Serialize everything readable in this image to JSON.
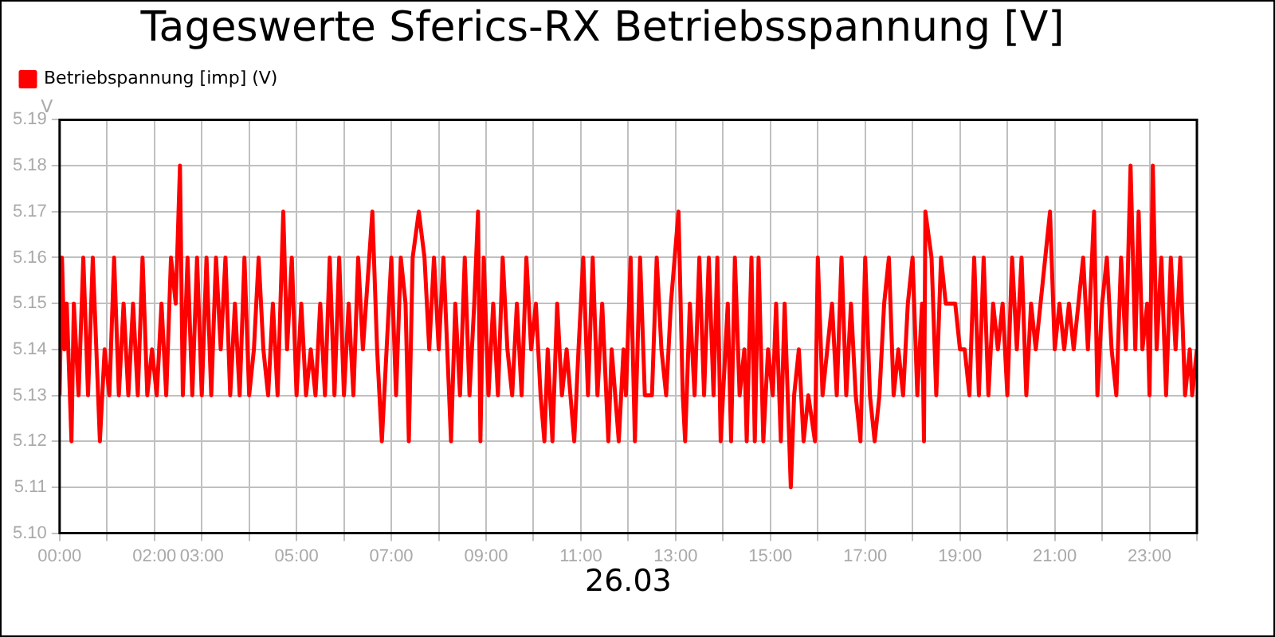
{
  "chart_data": {
    "type": "line",
    "title": "Tageswerte Sferics-RX Betriebsspannung [V]",
    "xlabel": "26.03",
    "ylabel": "V",
    "x": [
      0,
      0.05,
      0.1,
      0.15,
      0.25,
      0.3,
      0.4,
      0.5,
      0.6,
      0.7,
      0.85,
      0.95,
      1.05,
      1.15,
      1.25,
      1.35,
      1.45,
      1.55,
      1.65,
      1.75,
      1.85,
      1.95,
      2.05,
      2.15,
      2.25,
      2.35,
      2.45,
      2.54,
      2.6,
      2.7,
      2.8,
      2.9,
      3.0,
      3.1,
      3.2,
      3.3,
      3.4,
      3.5,
      3.6,
      3.7,
      3.8,
      3.9,
      4.0,
      4.1,
      4.2,
      4.3,
      4.4,
      4.5,
      4.6,
      4.72,
      4.8,
      4.9,
      5.0,
      5.1,
      5.2,
      5.3,
      5.4,
      5.5,
      5.6,
      5.7,
      5.8,
      5.9,
      6.0,
      6.1,
      6.2,
      6.3,
      6.4,
      6.6,
      6.7,
      6.8,
      6.9,
      7.0,
      7.1,
      7.2,
      7.3,
      7.37,
      7.45,
      7.58,
      7.7,
      7.8,
      7.9,
      8.0,
      8.1,
      8.26,
      8.35,
      8.45,
      8.55,
      8.65,
      8.75,
      8.83,
      8.88,
      8.95,
      9.05,
      9.15,
      9.25,
      9.35,
      9.45,
      9.55,
      9.65,
      9.75,
      9.85,
      9.95,
      10.05,
      10.15,
      10.23,
      10.3,
      10.4,
      10.5,
      10.6,
      10.7,
      10.86,
      10.95,
      11.05,
      11.15,
      11.25,
      11.35,
      11.45,
      11.58,
      11.65,
      11.8,
      11.9,
      11.95,
      12.05,
      12.14,
      12.25,
      12.35,
      12.5,
      12.6,
      12.7,
      12.8,
      12.9,
      13.06,
      13.15,
      13.2,
      13.3,
      13.4,
      13.5,
      13.6,
      13.7,
      13.8,
      13.88,
      13.95,
      14.05,
      14.1,
      14.17,
      14.25,
      14.35,
      14.45,
      14.5,
      14.6,
      14.67,
      14.75,
      14.85,
      14.95,
      15.05,
      15.12,
      15.22,
      15.3,
      15.43,
      15.5,
      15.6,
      15.7,
      15.8,
      15.94,
      16.0,
      16.1,
      16.2,
      16.3,
      16.4,
      16.5,
      16.6,
      16.7,
      16.8,
      16.9,
      17.0,
      17.1,
      17.2,
      17.3,
      17.4,
      17.5,
      17.6,
      17.7,
      17.8,
      17.9,
      18.0,
      18.1,
      18.2,
      18.24,
      18.27,
      18.4,
      18.5,
      18.6,
      18.7,
      18.9,
      19.0,
      19.1,
      19.2,
      19.3,
      19.4,
      19.5,
      19.6,
      19.7,
      19.8,
      19.9,
      20.0,
      20.1,
      20.2,
      20.3,
      20.4,
      20.5,
      20.6,
      20.7,
      20.8,
      20.9,
      21.0,
      21.1,
      21.2,
      21.3,
      21.4,
      21.5,
      21.6,
      21.7,
      21.83,
      21.9,
      22.0,
      22.1,
      22.2,
      22.3,
      22.4,
      22.5,
      22.6,
      22.7,
      22.77,
      22.85,
      22.95,
      23.0,
      23.07,
      23.15,
      23.25,
      23.35,
      23.45,
      23.55,
      23.65,
      23.75,
      23.85,
      23.9,
      24.0
    ],
    "series": [
      {
        "name": "Betriebspannung [imp] (V)",
        "color": "#ff0000",
        "values": [
          5.13,
          5.16,
          5.14,
          5.15,
          5.12,
          5.15,
          5.13,
          5.16,
          5.13,
          5.16,
          5.12,
          5.14,
          5.13,
          5.16,
          5.13,
          5.15,
          5.13,
          5.15,
          5.13,
          5.16,
          5.13,
          5.14,
          5.13,
          5.15,
          5.13,
          5.16,
          5.15,
          5.18,
          5.13,
          5.16,
          5.13,
          5.16,
          5.13,
          5.16,
          5.13,
          5.16,
          5.14,
          5.16,
          5.13,
          5.15,
          5.13,
          5.16,
          5.13,
          5.14,
          5.16,
          5.14,
          5.13,
          5.15,
          5.13,
          5.17,
          5.14,
          5.16,
          5.13,
          5.15,
          5.13,
          5.14,
          5.13,
          5.15,
          5.13,
          5.16,
          5.13,
          5.16,
          5.13,
          5.15,
          5.13,
          5.16,
          5.14,
          5.17,
          5.14,
          5.12,
          5.14,
          5.16,
          5.13,
          5.16,
          5.15,
          5.12,
          5.16,
          5.17,
          5.16,
          5.14,
          5.16,
          5.14,
          5.16,
          5.12,
          5.15,
          5.13,
          5.16,
          5.13,
          5.15,
          5.17,
          5.12,
          5.16,
          5.13,
          5.15,
          5.13,
          5.16,
          5.14,
          5.13,
          5.15,
          5.13,
          5.16,
          5.14,
          5.15,
          5.13,
          5.12,
          5.14,
          5.12,
          5.15,
          5.13,
          5.14,
          5.12,
          5.14,
          5.16,
          5.13,
          5.16,
          5.13,
          5.15,
          5.12,
          5.14,
          5.12,
          5.14,
          5.13,
          5.16,
          5.12,
          5.16,
          5.13,
          5.13,
          5.16,
          5.14,
          5.13,
          5.15,
          5.17,
          5.13,
          5.12,
          5.15,
          5.13,
          5.16,
          5.13,
          5.16,
          5.13,
          5.16,
          5.12,
          5.14,
          5.15,
          5.12,
          5.16,
          5.13,
          5.14,
          5.12,
          5.16,
          5.12,
          5.16,
          5.12,
          5.14,
          5.13,
          5.15,
          5.12,
          5.15,
          5.11,
          5.13,
          5.14,
          5.12,
          5.13,
          5.12,
          5.16,
          5.13,
          5.14,
          5.15,
          5.13,
          5.16,
          5.13,
          5.15,
          5.13,
          5.12,
          5.16,
          5.13,
          5.12,
          5.13,
          5.15,
          5.16,
          5.13,
          5.14,
          5.13,
          5.15,
          5.16,
          5.13,
          5.15,
          5.12,
          5.17,
          5.16,
          5.13,
          5.16,
          5.15,
          5.15,
          5.14,
          5.14,
          5.13,
          5.16,
          5.13,
          5.16,
          5.13,
          5.15,
          5.14,
          5.15,
          5.13,
          5.16,
          5.14,
          5.16,
          5.13,
          5.15,
          5.14,
          5.15,
          5.16,
          5.17,
          5.14,
          5.15,
          5.14,
          5.15,
          5.14,
          5.15,
          5.16,
          5.14,
          5.17,
          5.13,
          5.15,
          5.16,
          5.14,
          5.13,
          5.16,
          5.14,
          5.18,
          5.14,
          5.17,
          5.14,
          5.15,
          5.13,
          5.18,
          5.14,
          5.16,
          5.13,
          5.16,
          5.14,
          5.16,
          5.13,
          5.14,
          5.13,
          5.14
        ]
      }
    ],
    "xlim": [
      0,
      24
    ],
    "xticks": [
      {
        "value": 0,
        "label": "00:00"
      },
      {
        "value": 1,
        "label": null
      },
      {
        "value": 2,
        "label": "02:00"
      },
      {
        "value": 3,
        "label": "03:00"
      },
      {
        "value": 4,
        "label": null
      },
      {
        "value": 5,
        "label": "05:00"
      },
      {
        "value": 6,
        "label": null
      },
      {
        "value": 7,
        "label": "07:00"
      },
      {
        "value": 8,
        "label": null
      },
      {
        "value": 9,
        "label": "09:00"
      },
      {
        "value": 10,
        "label": null
      },
      {
        "value": 11,
        "label": "11:00"
      },
      {
        "value": 12,
        "label": null
      },
      {
        "value": 13,
        "label": "13:00"
      },
      {
        "value": 14,
        "label": null
      },
      {
        "value": 15,
        "label": "15:00"
      },
      {
        "value": 16,
        "label": null
      },
      {
        "value": 17,
        "label": "17:00"
      },
      {
        "value": 18,
        "label": null
      },
      {
        "value": 19,
        "label": "19:00"
      },
      {
        "value": 20,
        "label": null
      },
      {
        "value": 21,
        "label": "21:00"
      },
      {
        "value": 22,
        "label": null
      },
      {
        "value": 23,
        "label": "23:00"
      },
      {
        "value": 24,
        "label": null
      }
    ],
    "ylim": [
      5.1,
      5.19
    ],
    "yticks": [
      {
        "value": 5.1,
        "label": "5.10"
      },
      {
        "value": 5.11,
        "label": "5.11"
      },
      {
        "value": 5.12,
        "label": "5.12"
      },
      {
        "value": 5.13,
        "label": "5.13"
      },
      {
        "value": 5.14,
        "label": "5.14"
      },
      {
        "value": 5.15,
        "label": "5.15"
      },
      {
        "value": 5.16,
        "label": "5.16"
      },
      {
        "value": 5.17,
        "label": "5.17"
      },
      {
        "value": 5.18,
        "label": "5.18"
      },
      {
        "value": 5.19,
        "label": "5.19"
      }
    ],
    "grid": true,
    "legend": "top left",
    "marker": "none",
    "line_style": "solid"
  }
}
